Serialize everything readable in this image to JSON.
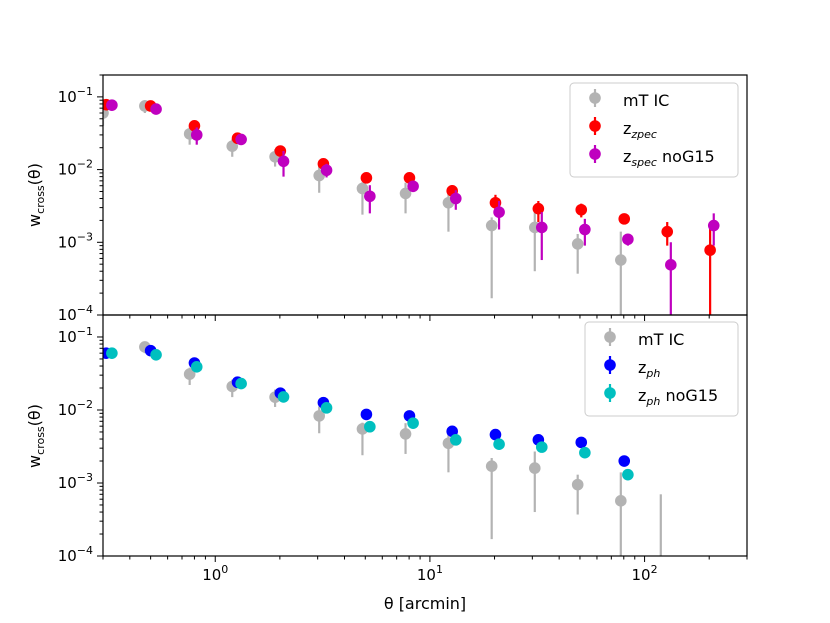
{
  "chart_data": [
    {
      "type": "scatter",
      "panel": "top",
      "xscale": "log",
      "yscale": "log",
      "xlim": [
        0.3,
        300
      ],
      "ylim": [
        0.0001,
        0.2
      ],
      "xlabel": "",
      "ylabel": "w_cross(θ)",
      "ylabel_main": "w",
      "ylabel_sub": "cross",
      "ylabel_tail": "(θ)",
      "yticks": [
        {
          "base": "10",
          "exp": "−4",
          "value": 0.0001
        },
        {
          "base": "10",
          "exp": "−3",
          "value": 0.001
        },
        {
          "base": "10",
          "exp": "−2",
          "value": 0.01
        },
        {
          "base": "10",
          "exp": "−1",
          "value": 0.1
        }
      ],
      "legend_position": "top-right",
      "series": [
        {
          "name": "mT IC",
          "label_main": "mT IC",
          "label_sub": "",
          "label_tail": "",
          "color": "#b3b3b3",
          "x": [
            0.3,
            0.47,
            0.76,
            1.2,
            1.9,
            3.05,
            4.85,
            7.7,
            12.2,
            19.4,
            30.8,
            48.8,
            77.5
          ],
          "y": [
            0.06,
            0.075,
            0.031,
            0.021,
            0.015,
            0.0083,
            0.0055,
            0.0047,
            0.0035,
            0.0017,
            0.0016,
            0.00095,
            0.00057
          ],
          "ylo": [
            0.04,
            0.06,
            0.022,
            0.015,
            0.011,
            0.0048,
            0.0024,
            0.0025,
            0.0014,
            0.00017,
            0.0004,
            0.00037,
            0.0001
          ],
          "yhi": [
            0.08,
            0.09,
            0.038,
            0.026,
            0.019,
            0.0112,
            0.0067,
            0.0066,
            0.0046,
            0.0022,
            0.0027,
            0.0013,
            0.0014
          ]
        },
        {
          "name": "z_zpec",
          "label_main": "z",
          "label_sub": "zpec",
          "label_tail": "",
          "color": "#ff0000",
          "x": [
            0.31,
            0.5,
            0.8,
            1.27,
            2.01,
            3.19,
            5.06,
            8.03,
            12.7,
            20.2,
            32.0,
            50.7,
            80.4,
            127.5,
            202.0
          ],
          "y": [
            0.078,
            0.075,
            0.04,
            0.027,
            0.018,
            0.012,
            0.0077,
            0.0077,
            0.0051,
            0.0035,
            0.0029,
            0.0028,
            0.0021,
            0.0014,
            0.00078
          ],
          "ylo": [
            0.068,
            0.069,
            0.034,
            0.023,
            0.016,
            0.01,
            0.0066,
            0.0066,
            0.0041,
            0.0025,
            0.0019,
            0.0022,
            0.0019,
            0.0009,
            0.0001
          ],
          "yhi": [
            0.088,
            0.081,
            0.046,
            0.031,
            0.021,
            0.014,
            0.0088,
            0.0088,
            0.0061,
            0.0045,
            0.0037,
            0.0034,
            0.0023,
            0.0019,
            0.0017
          ]
        },
        {
          "name": "z_spec noG15",
          "label_main": "z",
          "label_sub": "spec",
          "label_tail": " noG15",
          "color": "#bf00bf",
          "x": [
            0.33,
            0.53,
            0.82,
            1.32,
            2.08,
            3.3,
            5.25,
            8.35,
            13.2,
            21.0,
            33.2,
            52.7,
            83.6,
            132.5,
            210.0
          ],
          "y": [
            0.077,
            0.068,
            0.03,
            0.026,
            0.013,
            0.0098,
            0.0043,
            0.0059,
            0.004,
            0.0026,
            0.0016,
            0.0015,
            0.0011,
            0.00049,
            0.0017
          ],
          "ylo": [
            0.068,
            0.063,
            0.022,
            0.023,
            0.008,
            0.0078,
            0.0025,
            0.0049,
            0.0028,
            0.0015,
            0.00057,
            0.0009,
            0.0009,
            0.0001,
            0.0009
          ],
          "yhi": [
            0.086,
            0.073,
            0.038,
            0.029,
            0.018,
            0.012,
            0.0061,
            0.0069,
            0.0052,
            0.0037,
            0.0026,
            0.0021,
            0.0013,
            0.001,
            0.0025
          ]
        }
      ]
    },
    {
      "type": "scatter",
      "panel": "bottom",
      "xscale": "log",
      "yscale": "log",
      "xlim": [
        0.3,
        300
      ],
      "ylim": [
        0.0001,
        0.2
      ],
      "xlabel": "θ [arcmin]",
      "ylabel": "w_cross(θ)",
      "ylabel_main": "w",
      "ylabel_sub": "cross",
      "ylabel_tail": "(θ)",
      "xticks": [
        {
          "base": "10",
          "exp": "0",
          "value": 1
        },
        {
          "base": "10",
          "exp": "1",
          "value": 10
        },
        {
          "base": "10",
          "exp": "2",
          "value": 100
        }
      ],
      "yticks": [
        {
          "base": "10",
          "exp": "−4",
          "value": 0.0001
        },
        {
          "base": "10",
          "exp": "−3",
          "value": 0.001
        },
        {
          "base": "10",
          "exp": "−2",
          "value": 0.01
        },
        {
          "base": "10",
          "exp": "−1",
          "value": 0.1
        }
      ],
      "legend_position": "top-right",
      "series": [
        {
          "name": "mT IC",
          "label_main": "mT IC",
          "label_sub": "",
          "label_tail": "",
          "color": "#b3b3b3",
          "x": [
            0.47,
            0.76,
            1.2,
            1.9,
            3.05,
            4.85,
            7.7,
            12.2,
            19.4,
            30.8,
            48.8,
            77.5,
            119.0
          ],
          "y": [
            0.073,
            0.031,
            0.021,
            0.015,
            0.0083,
            0.0055,
            0.0047,
            0.0035,
            0.0017,
            0.0016,
            0.00095,
            0.00057,
            null
          ],
          "ylo": [
            0.06,
            0.022,
            0.015,
            0.011,
            0.0048,
            0.0024,
            0.0025,
            0.0014,
            0.00017,
            0.0004,
            0.00037,
            0.0001,
            0.0001
          ],
          "yhi": [
            0.086,
            0.038,
            0.026,
            0.019,
            0.0112,
            0.0067,
            0.0066,
            0.0046,
            0.0022,
            0.0027,
            0.0013,
            0.0014,
            0.0007
          ]
        },
        {
          "name": "z_ph",
          "label_main": "z",
          "label_sub": "ph",
          "label_tail": "",
          "color": "#0000ff",
          "x": [
            0.31,
            0.5,
            0.8,
            1.27,
            2.01,
            3.19,
            5.06,
            8.03,
            12.7,
            20.2,
            32.0,
            50.7,
            80.4
          ],
          "y": [
            0.06,
            0.065,
            0.044,
            0.024,
            0.017,
            0.0126,
            0.0087,
            0.0083,
            0.0051,
            0.0046,
            0.0039,
            0.0036,
            0.002
          ],
          "ylo": [
            0.055,
            0.061,
            0.041,
            0.022,
            0.016,
            0.0117,
            0.008,
            0.0077,
            0.0047,
            0.0043,
            0.0036,
            0.0033,
            0.0018
          ],
          "yhi": [
            0.065,
            0.069,
            0.047,
            0.026,
            0.018,
            0.0135,
            0.0094,
            0.0089,
            0.0055,
            0.0049,
            0.0042,
            0.0039,
            0.0022
          ]
        },
        {
          "name": "z_ph noG15",
          "label_main": "z",
          "label_sub": "ph",
          "label_tail": " noG15",
          "color": "#00bfbf",
          "x": [
            0.33,
            0.53,
            0.82,
            1.32,
            2.08,
            3.3,
            5.25,
            8.35,
            13.2,
            21.0,
            33.2,
            52.7,
            83.6
          ],
          "y": [
            0.06,
            0.057,
            0.039,
            0.023,
            0.0151,
            0.0107,
            0.0059,
            0.0066,
            0.0039,
            0.0034,
            0.0031,
            0.0026,
            0.0013
          ],
          "ylo": [
            0.056,
            0.054,
            0.036,
            0.021,
            0.014,
            0.0099,
            0.0054,
            0.0061,
            0.0036,
            0.0031,
            0.0028,
            0.0024,
            0.0012
          ],
          "yhi": [
            0.064,
            0.06,
            0.042,
            0.025,
            0.0162,
            0.0115,
            0.0064,
            0.0071,
            0.0042,
            0.0037,
            0.0034,
            0.0028,
            0.0014
          ]
        }
      ]
    }
  ]
}
